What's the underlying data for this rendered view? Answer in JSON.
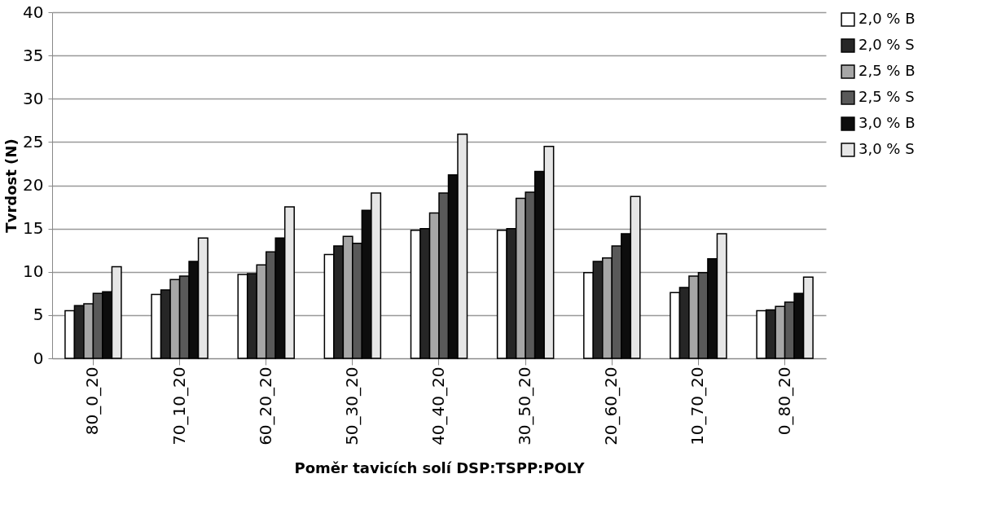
{
  "chart_data": {
    "type": "bar",
    "xlabel": "Poměr tavicích solí DSP:TSPP:POLY",
    "ylabel": "Tvrdost (N)",
    "categories": [
      "80_0_20",
      "70_10_20",
      "60_20_20",
      "50_30_20",
      "40_40_20",
      "30_50_20",
      "20_60_20",
      "10_70_20",
      "0_80_20"
    ],
    "series": [
      {
        "name": "2,0 % B",
        "color": "#ffffff",
        "values": [
          5.5,
          7.4,
          9.7,
          12.0,
          14.8,
          14.8,
          9.9,
          7.6,
          5.5
        ]
      },
      {
        "name": "2,0 % S",
        "color": "#262626",
        "values": [
          6.1,
          7.9,
          9.8,
          13.0,
          15.0,
          15.0,
          11.2,
          8.2,
          5.6
        ]
      },
      {
        "name": "2,5 % B",
        "color": "#a6a6a6",
        "values": [
          6.3,
          9.1,
          10.8,
          14.1,
          16.8,
          18.5,
          11.6,
          9.5,
          6.0
        ]
      },
      {
        "name": "2,5 % S",
        "color": "#595959",
        "values": [
          7.5,
          9.5,
          12.3,
          13.3,
          19.1,
          19.2,
          13.0,
          9.9,
          6.5
        ]
      },
      {
        "name": "3,0 % B",
        "color": "#0d0d0d",
        "values": [
          7.7,
          11.2,
          13.9,
          17.1,
          21.2,
          21.6,
          14.4,
          11.5,
          7.5
        ]
      },
      {
        "name": "3,0 % S",
        "color": "#e6e6e6",
        "values": [
          10.6,
          13.9,
          17.5,
          19.1,
          25.9,
          24.5,
          18.7,
          14.4,
          9.4
        ]
      }
    ],
    "ylim": [
      0,
      40
    ],
    "yticks": [
      0,
      5,
      10,
      15,
      20,
      25,
      30,
      35,
      40
    ],
    "grid": "y",
    "legend": "right"
  }
}
